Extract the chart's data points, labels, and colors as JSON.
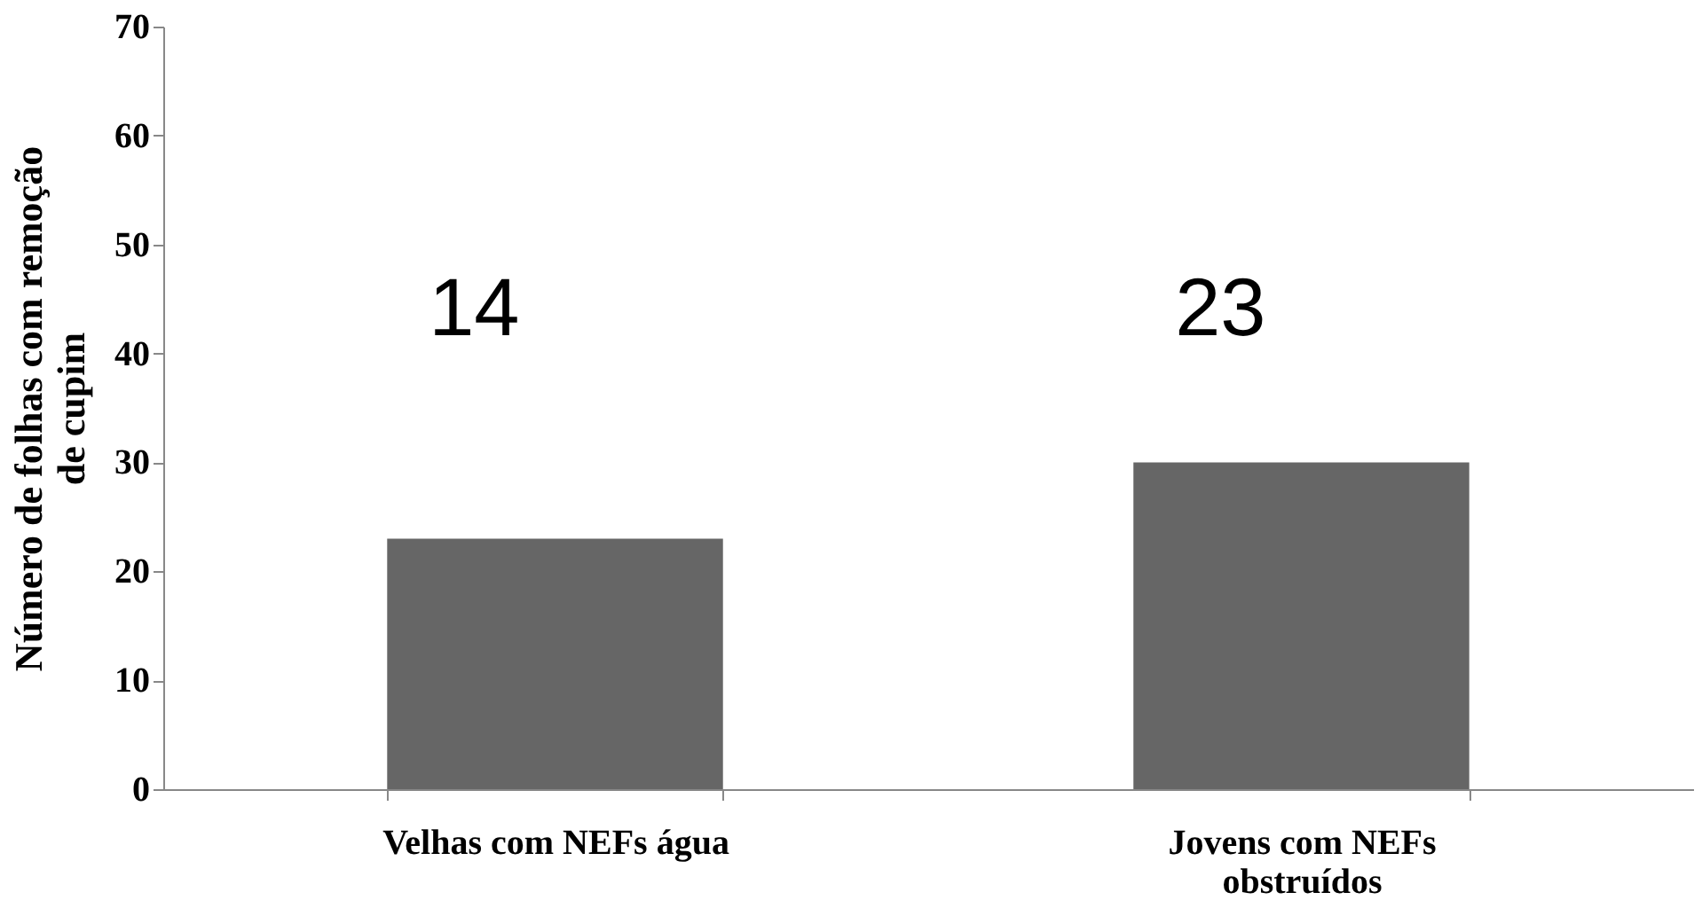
{
  "chart_data": {
    "type": "bar",
    "ylabel": "Número de folhas com remoção\nde cupim",
    "categories": [
      "Velhas com NEFs água",
      "Jovens com NEFs\nobstruídos"
    ],
    "values": [
      23,
      30
    ],
    "color": "#666666",
    "ylim": [
      0,
      70
    ],
    "yticks": [
      0,
      10,
      20,
      30,
      40,
      50,
      60,
      70
    ],
    "grid": false,
    "annotations": [
      "14",
      "23"
    ]
  }
}
